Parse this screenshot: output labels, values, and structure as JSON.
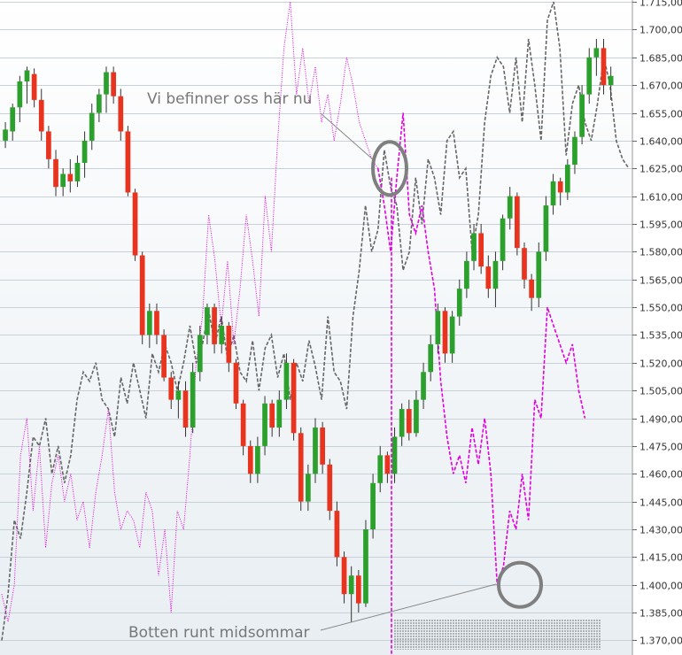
{
  "chart_data": {
    "type": "line",
    "title": "",
    "xlabel": "",
    "ylabel": "",
    "ylim": [
      1364,
      1716
    ],
    "y_ticks": [
      "1.370,00",
      "1.385,00",
      "1.400,00",
      "1.415,00",
      "1.430,00",
      "1.445,00",
      "1.460,00",
      "1.475,00",
      "1.490,00",
      "1.505,00",
      "1.520,00",
      "1.535,00",
      "1.550,00",
      "1.565,00",
      "1.580,00",
      "1.595,00",
      "1.610,00",
      "1.625,00",
      "1.640,00",
      "1.655,00",
      "1.670,00",
      "1.685,00",
      "1.700,00",
      "1.715,00"
    ],
    "grid": true,
    "colors": {
      "up": "#2ca02c",
      "down": "#e8331e",
      "gray_series": "#666666",
      "magenta_series": "#e000e0",
      "grid": "#c8d0d8",
      "annotation": "#777777",
      "circle": "#7f7f7f"
    },
    "candles": [
      {
        "o": 1640,
        "h": 1650,
        "l": 1636,
        "c": 1646
      },
      {
        "o": 1645,
        "h": 1660,
        "l": 1640,
        "c": 1658
      },
      {
        "o": 1658,
        "h": 1675,
        "l": 1650,
        "c": 1672
      },
      {
        "o": 1672,
        "h": 1680,
        "l": 1660,
        "c": 1678
      },
      {
        "o": 1676,
        "h": 1679,
        "l": 1658,
        "c": 1662
      },
      {
        "o": 1662,
        "h": 1668,
        "l": 1640,
        "c": 1645
      },
      {
        "o": 1645,
        "h": 1648,
        "l": 1625,
        "c": 1630
      },
      {
        "o": 1630,
        "h": 1635,
        "l": 1610,
        "c": 1615
      },
      {
        "o": 1615,
        "h": 1625,
        "l": 1610,
        "c": 1622
      },
      {
        "o": 1622,
        "h": 1630,
        "l": 1612,
        "c": 1618
      },
      {
        "o": 1618,
        "h": 1632,
        "l": 1615,
        "c": 1628
      },
      {
        "o": 1628,
        "h": 1645,
        "l": 1620,
        "c": 1640
      },
      {
        "o": 1640,
        "h": 1660,
        "l": 1635,
        "c": 1655
      },
      {
        "o": 1655,
        "h": 1668,
        "l": 1650,
        "c": 1665
      },
      {
        "o": 1665,
        "h": 1680,
        "l": 1655,
        "c": 1677
      },
      {
        "o": 1677,
        "h": 1680,
        "l": 1660,
        "c": 1664
      },
      {
        "o": 1664,
        "h": 1668,
        "l": 1640,
        "c": 1645
      },
      {
        "o": 1645,
        "h": 1648,
        "l": 1610,
        "c": 1612
      },
      {
        "o": 1612,
        "h": 1614,
        "l": 1575,
        "c": 1578
      },
      {
        "o": 1578,
        "h": 1580,
        "l": 1530,
        "c": 1535
      },
      {
        "o": 1535,
        "h": 1552,
        "l": 1528,
        "c": 1548
      },
      {
        "o": 1548,
        "h": 1552,
        "l": 1530,
        "c": 1535
      },
      {
        "o": 1535,
        "h": 1538,
        "l": 1510,
        "c": 1512
      },
      {
        "o": 1512,
        "h": 1515,
        "l": 1495,
        "c": 1500
      },
      {
        "o": 1500,
        "h": 1510,
        "l": 1490,
        "c": 1505
      },
      {
        "o": 1505,
        "h": 1510,
        "l": 1480,
        "c": 1485
      },
      {
        "o": 1485,
        "h": 1520,
        "l": 1482,
        "c": 1515
      },
      {
        "o": 1515,
        "h": 1540,
        "l": 1510,
        "c": 1535
      },
      {
        "o": 1535,
        "h": 1552,
        "l": 1530,
        "c": 1550
      },
      {
        "o": 1550,
        "h": 1552,
        "l": 1525,
        "c": 1530
      },
      {
        "o": 1530,
        "h": 1545,
        "l": 1525,
        "c": 1540
      },
      {
        "o": 1540,
        "h": 1542,
        "l": 1515,
        "c": 1520
      },
      {
        "o": 1520,
        "h": 1522,
        "l": 1495,
        "c": 1498
      },
      {
        "o": 1498,
        "h": 1500,
        "l": 1470,
        "c": 1475
      },
      {
        "o": 1475,
        "h": 1478,
        "l": 1455,
        "c": 1460
      },
      {
        "o": 1460,
        "h": 1480,
        "l": 1455,
        "c": 1475
      },
      {
        "o": 1475,
        "h": 1502,
        "l": 1470,
        "c": 1498
      },
      {
        "o": 1498,
        "h": 1500,
        "l": 1480,
        "c": 1485
      },
      {
        "o": 1485,
        "h": 1505,
        "l": 1480,
        "c": 1500
      },
      {
        "o": 1500,
        "h": 1525,
        "l": 1495,
        "c": 1520
      },
      {
        "o": 1520,
        "h": 1522,
        "l": 1478,
        "c": 1482
      },
      {
        "o": 1482,
        "h": 1485,
        "l": 1440,
        "c": 1445
      },
      {
        "o": 1445,
        "h": 1465,
        "l": 1440,
        "c": 1460
      },
      {
        "o": 1460,
        "h": 1490,
        "l": 1455,
        "c": 1485
      },
      {
        "o": 1485,
        "h": 1488,
        "l": 1460,
        "c": 1465
      },
      {
        "o": 1465,
        "h": 1468,
        "l": 1435,
        "c": 1440
      },
      {
        "o": 1440,
        "h": 1445,
        "l": 1410,
        "c": 1415
      },
      {
        "o": 1415,
        "h": 1418,
        "l": 1390,
        "c": 1395
      },
      {
        "o": 1395,
        "h": 1410,
        "l": 1380,
        "c": 1405
      },
      {
        "o": 1405,
        "h": 1408,
        "l": 1385,
        "c": 1390
      },
      {
        "o": 1390,
        "h": 1435,
        "l": 1388,
        "c": 1430
      },
      {
        "o": 1430,
        "h": 1460,
        "l": 1425,
        "c": 1455
      },
      {
        "o": 1455,
        "h": 1475,
        "l": 1450,
        "c": 1470
      },
      {
        "o": 1470,
        "h": 1472,
        "l": 1455,
        "c": 1460
      },
      {
        "o": 1460,
        "h": 1485,
        "l": 1455,
        "c": 1480
      },
      {
        "o": 1480,
        "h": 1498,
        "l": 1475,
        "c": 1495
      },
      {
        "o": 1495,
        "h": 1500,
        "l": 1478,
        "c": 1482
      },
      {
        "o": 1482,
        "h": 1505,
        "l": 1480,
        "c": 1500
      },
      {
        "o": 1500,
        "h": 1520,
        "l": 1495,
        "c": 1515
      },
      {
        "o": 1515,
        "h": 1535,
        "l": 1510,
        "c": 1530
      },
      {
        "o": 1530,
        "h": 1552,
        "l": 1525,
        "c": 1548
      },
      {
        "o": 1548,
        "h": 1550,
        "l": 1520,
        "c": 1525
      },
      {
        "o": 1525,
        "h": 1548,
        "l": 1520,
        "c": 1545
      },
      {
        "o": 1545,
        "h": 1565,
        "l": 1540,
        "c": 1560
      },
      {
        "o": 1560,
        "h": 1580,
        "l": 1555,
        "c": 1575
      },
      {
        "o": 1575,
        "h": 1595,
        "l": 1570,
        "c": 1590
      },
      {
        "o": 1590,
        "h": 1595,
        "l": 1568,
        "c": 1572
      },
      {
        "o": 1572,
        "h": 1578,
        "l": 1555,
        "c": 1560
      },
      {
        "o": 1560,
        "h": 1580,
        "l": 1550,
        "c": 1575
      },
      {
        "o": 1575,
        "h": 1600,
        "l": 1570,
        "c": 1598
      },
      {
        "o": 1598,
        "h": 1615,
        "l": 1592,
        "c": 1610
      },
      {
        "o": 1610,
        "h": 1612,
        "l": 1578,
        "c": 1582
      },
      {
        "o": 1582,
        "h": 1585,
        "l": 1560,
        "c": 1565
      },
      {
        "o": 1565,
        "h": 1568,
        "l": 1548,
        "c": 1555
      },
      {
        "o": 1555,
        "h": 1585,
        "l": 1550,
        "c": 1580
      },
      {
        "o": 1580,
        "h": 1610,
        "l": 1575,
        "c": 1605
      },
      {
        "o": 1605,
        "h": 1622,
        "l": 1600,
        "c": 1618
      },
      {
        "o": 1618,
        "h": 1620,
        "l": 1605,
        "c": 1612
      },
      {
        "o": 1612,
        "h": 1630,
        "l": 1608,
        "c": 1627
      },
      {
        "o": 1627,
        "h": 1645,
        "l": 1622,
        "c": 1642
      },
      {
        "o": 1642,
        "h": 1670,
        "l": 1638,
        "c": 1665
      },
      {
        "o": 1665,
        "h": 1690,
        "l": 1660,
        "c": 1685
      },
      {
        "o": 1685,
        "h": 1695,
        "l": 1675,
        "c": 1690
      },
      {
        "o": 1690,
        "h": 1695,
        "l": 1665,
        "c": 1670
      },
      {
        "o": 1670,
        "h": 1680,
        "l": 1662,
        "c": 1675
      }
    ],
    "series": [
      {
        "style": "gray-dashed",
        "x": [
          0,
          3,
          6,
          9,
          12,
          15,
          18,
          21,
          24,
          27,
          30,
          33,
          36,
          39,
          42,
          45,
          48,
          51,
          54,
          57,
          60,
          63,
          66,
          69,
          72,
          75,
          78,
          81,
          84,
          87,
          90,
          93,
          96,
          99,
          102,
          105,
          108,
          111,
          114,
          117,
          120,
          123,
          126,
          129,
          132,
          135,
          138,
          141,
          144,
          147,
          150,
          153,
          156,
          159,
          162,
          165,
          168,
          171,
          174,
          177,
          180,
          183,
          186,
          189,
          192,
          195,
          198,
          201,
          204,
          207,
          210,
          213,
          216,
          219,
          222,
          225,
          228,
          231,
          234,
          237,
          240,
          243,
          246,
          249,
          252,
          255,
          258,
          261,
          264,
          267,
          270,
          273,
          276,
          279,
          282,
          285,
          288,
          291,
          294,
          297,
          300
        ],
        "values": [
          1370,
          1395,
          1435,
          1425,
          1450,
          1480,
          1475,
          1490,
          1460,
          1475,
          1455,
          1470,
          1500,
          1515,
          1510,
          1520,
          1500,
          1495,
          1480,
          1512,
          1498,
          1520,
          1505,
          1490,
          1525,
          1515,
          1530,
          1520,
          1505,
          1520,
          1540,
          1520,
          1530,
          1548,
          1530,
          1545,
          1522,
          1535,
          1515,
          1510,
          1532,
          1505,
          1528,
          1535,
          1512,
          1525,
          1500,
          1520,
          1510,
          1532,
          1518,
          1500,
          1545,
          1515,
          1510,
          1495,
          1545,
          1570,
          1605,
          1580,
          1592,
          1635,
          1615,
          1605,
          1570,
          1580,
          1620,
          1595,
          1630,
          1620,
          1600,
          1640,
          1645,
          1620,
          1625,
          1580,
          1600,
          1650,
          1675,
          1685,
          1680,
          1655,
          1685,
          1650,
          1695,
          1670,
          1640,
          1705,
          1715,
          1690,
          1632,
          1660,
          1670,
          1650,
          1640,
          1660,
          1685,
          1670,
          1640,
          1630,
          1625
        ]
      },
      {
        "style": "magenta-dotted",
        "x": [
          0,
          3,
          6,
          9,
          12,
          15,
          18,
          21,
          24,
          27,
          30,
          33,
          36,
          39,
          42,
          45,
          48,
          51,
          54,
          57,
          60,
          63,
          66,
          69,
          72,
          75,
          78,
          81,
          84,
          87,
          90,
          93,
          96,
          99,
          102,
          105,
          108,
          111,
          114,
          117,
          120,
          123,
          126,
          129,
          132,
          135,
          138,
          141,
          144,
          147,
          150,
          153,
          156,
          159,
          162,
          165,
          168,
          171,
          174,
          177,
          180
        ],
        "values": [
          1395,
          1380,
          1400,
          1470,
          1490,
          1440,
          1475,
          1420,
          1455,
          1470,
          1445,
          1460,
          1435,
          1445,
          1420,
          1450,
          1470,
          1495,
          1450,
          1430,
          1440,
          1435,
          1420,
          1450,
          1440,
          1405,
          1430,
          1385,
          1440,
          1430,
          1470,
          1520,
          1545,
          1600,
          1575,
          1540,
          1575,
          1530,
          1560,
          1600,
          1575,
          1545,
          1610,
          1580,
          1640,
          1690,
          1715,
          1665,
          1690,
          1660,
          1680,
          1650,
          1665,
          1640,
          1660,
          1685,
          1670,
          1650,
          1640,
          1630,
          1625
        ]
      },
      {
        "style": "magenta-dashed",
        "x": [
          180,
          183,
          186,
          189,
          192,
          195,
          198,
          201,
          204,
          207,
          210,
          213,
          216,
          219,
          222,
          225,
          228,
          231,
          234,
          237,
          240,
          243,
          246,
          249,
          252,
          255,
          258,
          261,
          264,
          267,
          270,
          273,
          276,
          279
        ],
        "values": [
          1625,
          1605,
          1580,
          1620,
          1655,
          1600,
          1590,
          1605,
          1580,
          1560,
          1510,
          1480,
          1460,
          1470,
          1455,
          1485,
          1465,
          1490,
          1460,
          1400,
          1410,
          1440,
          1430,
          1460,
          1435,
          1500,
          1490,
          1550,
          1540,
          1530,
          1520,
          1530,
          1505,
          1490
        ]
      }
    ],
    "annotations": [
      {
        "text": "Vi befinner oss här nu",
        "arrow_to": [
          1620,
          1625
        ]
      },
      {
        "text": "Botten runt midsommar",
        "arrow_to": [
          1400,
          1400
        ]
      }
    ]
  }
}
